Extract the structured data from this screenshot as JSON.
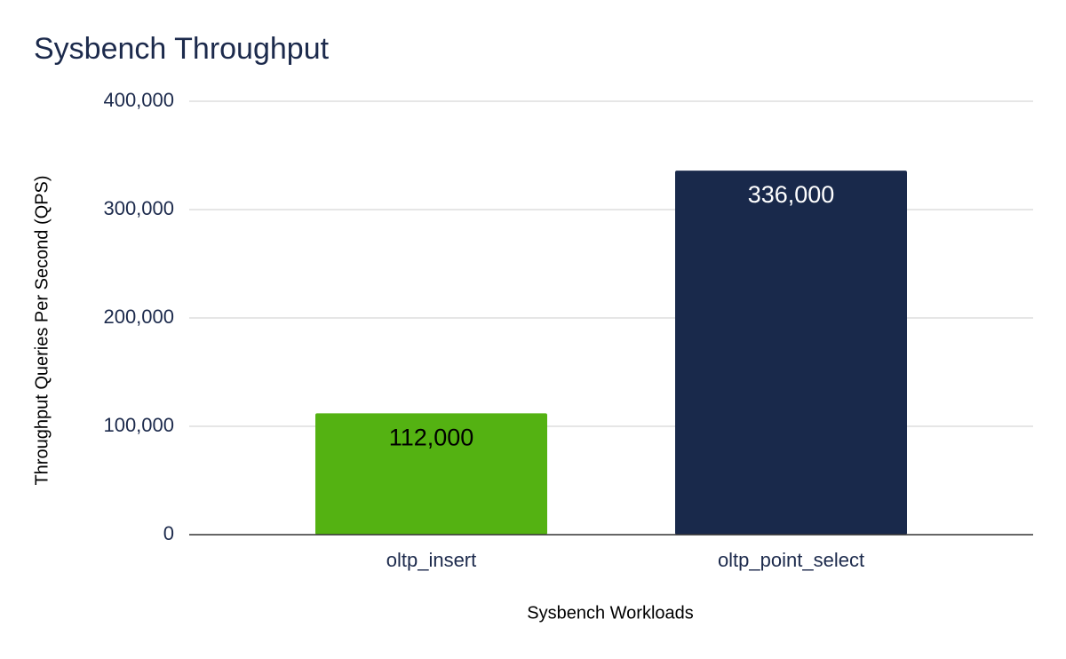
{
  "chart_data": {
    "type": "bar",
    "title": "Sysbench Throughput",
    "x_label": "Sysbench Workloads",
    "y_label": "Throughput Queries Per Second (QPS)",
    "categories": [
      "oltp_insert",
      "oltp_point_select"
    ],
    "values": [
      112000,
      336000
    ],
    "value_labels": [
      "112,000",
      "336,000"
    ],
    "colors": [
      "#54b212",
      "#19294b"
    ],
    "value_label_colors": [
      "#000000",
      "#ffffff"
    ],
    "ylim": [
      0,
      400000
    ],
    "yticks": [
      0,
      {
        "value": 100000,
        "label": "100,000"
      },
      {
        "value": 200000,
        "label": "200,000"
      },
      {
        "value": 300000,
        "label": "300,000"
      },
      {
        "value": 400000,
        "label": "400,000"
      }
    ],
    "grid": true
  }
}
